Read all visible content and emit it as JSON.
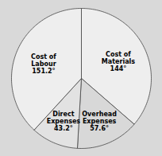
{
  "chart_data": {
    "type": "pie",
    "categories": [
      "Cost of\nMaterials",
      "Overhead\nExpenses",
      "Direct\nExpenses",
      "Cost of\nLabour"
    ],
    "values": [
      144,
      57.6,
      43.2,
      151.2
    ],
    "value_labels": [
      "144°",
      "57.6°",
      "43.2°",
      "151.2°"
    ],
    "colors": [
      "#eeeeee",
      "#d8d8d8",
      "#e2e2e2",
      "#eeeeee"
    ],
    "data_labels": true
  }
}
